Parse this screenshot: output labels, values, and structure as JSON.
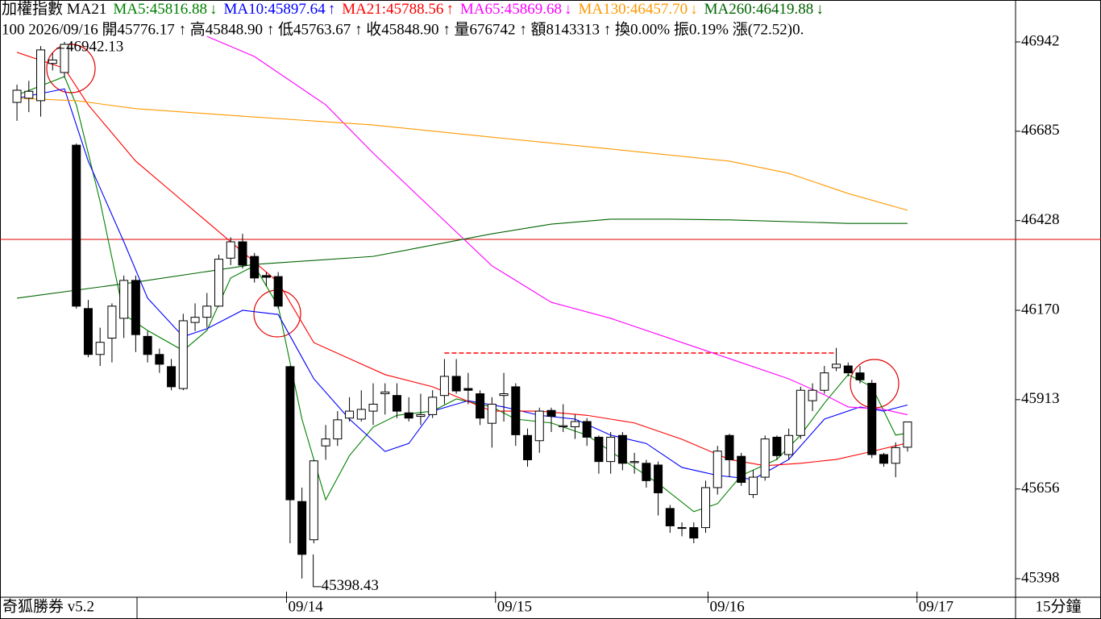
{
  "chart_data": {
    "type": "candlestick",
    "indicator": "加權指數 MA21",
    "info_line": "100 2026/09/16 開45776.17 ↑ 高45848.90 ↑ 低45763.67 ↑ 收45848.90 ↑ 量676742 ↑ 額8143313 ↑ 換0.00% 振0.19% 漲(72.52)0.",
    "footer_left": "奇狐勝券 v5.2",
    "period": "15分鐘",
    "xlim": [
      -1.43,
      84.1
    ],
    "xticks": [
      {
        "value": 22.7,
        "label": "09/14"
      },
      {
        "value": 40.3,
        "label": "09/15"
      },
      {
        "value": 58.2,
        "label": "09/16"
      },
      {
        "value": 75.8,
        "label": "09/17"
      }
    ],
    "ylim": [
      45347,
      46993
    ],
    "yticks": [
      46942,
      46685,
      46428,
      46170,
      45913,
      45656,
      45398
    ],
    "up_color": "#ffffff",
    "down_color": "#000000",
    "candles": {
      "x": [
        0,
        1,
        2,
        3,
        4,
        5,
        6,
        7,
        8,
        9,
        10,
        11,
        12,
        13,
        14,
        15,
        16,
        17,
        18,
        19,
        20,
        21,
        22,
        23,
        24,
        25,
        26,
        27,
        28,
        29,
        30,
        31,
        32,
        33,
        34,
        35,
        36,
        37,
        38,
        39,
        40,
        41,
        42,
        43,
        44,
        45,
        46,
        47,
        48,
        49,
        50,
        51,
        52,
        53,
        54,
        55,
        56,
        57,
        58,
        59,
        60,
        61,
        62,
        63,
        64,
        65,
        66,
        67,
        68,
        69,
        70,
        71,
        72,
        73,
        74,
        75
      ],
      "open": [
        46768,
        46780,
        46773,
        46880,
        46854,
        46645,
        46175,
        46043,
        46090,
        46147,
        46256,
        46095,
        46043,
        46008,
        45945,
        46135,
        46150,
        46182,
        46320,
        46367,
        46325,
        46270,
        46267,
        46008,
        45620,
        45510,
        45780,
        45800,
        45860,
        45857,
        45880,
        45930,
        45925,
        45875,
        45865,
        45870,
        45925,
        45980,
        45945,
        45930,
        45845,
        45925,
        45950,
        45810,
        45795,
        45882,
        45835,
        45835,
        45850,
        45805,
        45735,
        45810,
        45732,
        45730,
        45725,
        45600,
        45545,
        45545,
        45545,
        45660,
        45810,
        45750,
        45640,
        45690,
        45805,
        45755,
        45810,
        45910,
        45940,
        46005,
        46010,
        45990,
        45960,
        45755,
        45730,
        45776.17
      ],
      "high": [
        46819,
        46830,
        46930,
        46910,
        46942.13,
        46650,
        46200,
        46120,
        46190,
        46270,
        46270,
        46110,
        46060,
        46030,
        46160,
        46190,
        46220,
        46330,
        46380,
        46390,
        46335,
        46280,
        46280,
        46010,
        45660,
        45740,
        45840,
        45880,
        45920,
        45940,
        45960,
        45960,
        45960,
        45920,
        45930,
        45940,
        46030,
        46030,
        45990,
        45940,
        45920,
        45990,
        45960,
        45830,
        45890,
        45890,
        45900,
        45870,
        45860,
        45810,
        45820,
        45820,
        45760,
        45740,
        45735,
        45610,
        45560,
        45560,
        45680,
        45780,
        45815,
        45760,
        45710,
        45810,
        45810,
        45830,
        45950,
        45960,
        46010,
        46062,
        46020,
        46010,
        45970,
        45760,
        45790,
        45848.9
      ],
      "low": [
        46715,
        46740,
        46727,
        46860,
        46840,
        46175,
        46035,
        46010,
        46020,
        46090,
        46050,
        46020,
        45990,
        45940,
        45940,
        46110,
        46120,
        46180,
        46300,
        46290,
        46250,
        46240,
        46175,
        45500,
        45398.43,
        45500,
        45740,
        45780,
        45850,
        45850,
        45840,
        45870,
        45860,
        45850,
        45840,
        45860,
        45900,
        45930,
        45900,
        45840,
        45775,
        45850,
        45780,
        45720,
        45760,
        45820,
        45820,
        45800,
        45780,
        45700,
        45700,
        45710,
        45700,
        45660,
        45580,
        45530,
        45520,
        45500,
        45530,
        45640,
        45690,
        45665,
        45630,
        45680,
        45740,
        45740,
        45800,
        45880,
        45930,
        45995,
        45980,
        45960,
        45745,
        45720,
        45690,
        45763.67
      ],
      "close": [
        46803,
        46800,
        46919,
        46890,
        46935,
        46182,
        46043,
        46078,
        46182,
        46256,
        46100,
        46043,
        46015,
        45950,
        46140,
        46150,
        46182,
        46317,
        46367,
        46300,
        46263,
        46265,
        46182,
        45625,
        45468,
        45737,
        45800,
        45855,
        45880,
        45885,
        45900,
        45935,
        45880,
        45860,
        45870,
        45920,
        45980,
        45938,
        45940,
        45860,
        45900,
        45930,
        45812,
        45740,
        45880,
        45865,
        45838,
        45850,
        45805,
        45735,
        45805,
        45730,
        45735,
        45680,
        45645,
        45550,
        45545,
        45515,
        45660,
        45765,
        45740,
        45675,
        45690,
        45800,
        45752,
        45810,
        45940,
        45940,
        45990,
        46015,
        45990,
        45970,
        45755,
        45730,
        45775,
        45848.9
      ]
    },
    "series": [
      {
        "name": "MA5:45816.88",
        "trend": "↓",
        "color": "#008000",
        "x": [
          0,
          4,
          5,
          7,
          9,
          11,
          14,
          16,
          18,
          20,
          22,
          24,
          26,
          28,
          30,
          32,
          35,
          37,
          40,
          42,
          45,
          48,
          51,
          54,
          57,
          59,
          61,
          64,
          66,
          68,
          70,
          72,
          74,
          75
        ],
        "values": [
          46789,
          46842,
          46761,
          46483,
          46158,
          46112,
          46054,
          46112,
          46263,
          46298,
          46182,
          45857,
          45625,
          45752,
          45834,
          45868,
          45880,
          45915,
          45892,
          45857,
          45846,
          45811,
          45741,
          45672,
          45591,
          45614,
          45695,
          45741,
          45811,
          45903,
          45985,
          45950,
          45811,
          45816.88
        ]
      },
      {
        "name": "MA10:45897.64",
        "trend": "↑",
        "color": "#0000ff",
        "x": [
          0,
          4,
          6,
          9,
          11,
          14,
          16,
          19,
          22,
          25,
          28,
          31,
          33,
          35,
          38,
          41,
          44,
          47,
          50,
          53,
          56,
          59,
          62,
          65,
          68,
          71,
          73,
          75
        ],
        "values": [
          46780,
          46807,
          46599,
          46367,
          46205,
          46094,
          46117,
          46170,
          46158,
          45973,
          45857,
          45764,
          45787,
          45880,
          45910,
          45892,
          45868,
          45857,
          45811,
          45787,
          45718,
          45695,
          45684,
          45741,
          45857,
          45892,
          45880,
          45897.64
        ]
      },
      {
        "name": "MA21:45788.56",
        "trend": "↑",
        "color": "#ff0000",
        "x": [
          0,
          4,
          6,
          10,
          14,
          18,
          22,
          25,
          28,
          31,
          35,
          40,
          44,
          48,
          52,
          56,
          60,
          63,
          66,
          69,
          72,
          75
        ],
        "values": [
          46912,
          46866,
          46761,
          46599,
          46483,
          46367,
          46251,
          46077,
          46031,
          45985,
          45950,
          45880,
          45880,
          45868,
          45846,
          45799,
          45741,
          45723,
          45730,
          45741,
          45764,
          45788.56
        ]
      },
      {
        "name": "MA65:45869.68",
        "trend": "↓",
        "color": "#ff00ff",
        "x": [
          16,
          20,
          26,
          30,
          35,
          40,
          45,
          50,
          55,
          60,
          65,
          68,
          70,
          73,
          75
        ],
        "values": [
          46958,
          46900,
          46761,
          46622,
          46460,
          46298,
          46193,
          46147,
          46089,
          46031,
          45973,
          45927,
          45892,
          45885,
          45869.68
        ]
      },
      {
        "name": "MA130:46457.70",
        "trend": "↓",
        "color": "#ff9900",
        "x": [
          0,
          5,
          10,
          20,
          30,
          40,
          50,
          60,
          65,
          70,
          75
        ],
        "values": [
          46780,
          46773,
          46750,
          46726,
          46703,
          46668,
          46634,
          46599,
          46564,
          46506,
          46457.7
        ]
      },
      {
        "name": "MA260:46419.88",
        "trend": "↓",
        "color": "#006400",
        "x": [
          0,
          10,
          20,
          30,
          40,
          45,
          50,
          55,
          60,
          70,
          75
        ],
        "values": [
          46205,
          46251,
          46302,
          46325,
          46390,
          46418,
          46432,
          46432,
          46430,
          46420,
          46419.88
        ]
      }
    ],
    "reference_lines": [
      {
        "y": 46374,
        "color": "#e00000",
        "style": "solid"
      },
      {
        "y": 46047,
        "x": [
          36,
          69
        ],
        "color": "#ff0000",
        "style": "dashed"
      }
    ]
  }
}
